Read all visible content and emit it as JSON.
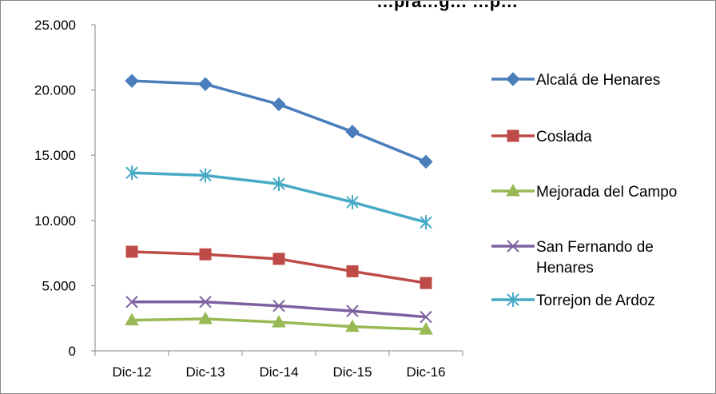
{
  "chart_data": {
    "type": "line",
    "title": "…pra…g…   …p…",
    "categories": [
      "Dic-12",
      "Dic-13",
      "Dic-14",
      "Dic-15",
      "Dic-16"
    ],
    "ylim": [
      0,
      25000
    ],
    "yticks": [
      0,
      5000,
      10000,
      15000,
      20000,
      25000
    ],
    "ytick_labels": [
      "0",
      "5.000",
      "10.000",
      "15.000",
      "20.000",
      "25.000"
    ],
    "grid": "none",
    "legend_position": "right",
    "series": [
      {
        "name": "Alcalá de Henares",
        "name_lines": [
          "Alcalá de Henares"
        ],
        "color": "#4a7ebb",
        "marker": "diamond",
        "values": [
          20700,
          20450,
          18900,
          16800,
          14500
        ]
      },
      {
        "name": "Coslada",
        "name_lines": [
          "Coslada"
        ],
        "color": "#be4b48",
        "marker": "square",
        "values": [
          7600,
          7400,
          7050,
          6100,
          5200
        ]
      },
      {
        "name": "Mejorada del Campo",
        "name_lines": [
          "Mejorada del Campo"
        ],
        "color": "#98b954",
        "marker": "triangle",
        "values": [
          2350,
          2450,
          2200,
          1850,
          1650
        ]
      },
      {
        "name": "San  Fernando de Henares",
        "name_lines": [
          "San  Fernando de",
          "Henares"
        ],
        "color": "#7d60a0",
        "marker": "x",
        "values": [
          3750,
          3750,
          3450,
          3050,
          2600
        ]
      },
      {
        "name": "Torrejon de Ardoz",
        "name_lines": [
          "Torrejon de Ardoz"
        ],
        "color": "#46aac5",
        "marker": "star",
        "values": [
          13650,
          13450,
          12800,
          11400,
          9850
        ]
      }
    ]
  }
}
